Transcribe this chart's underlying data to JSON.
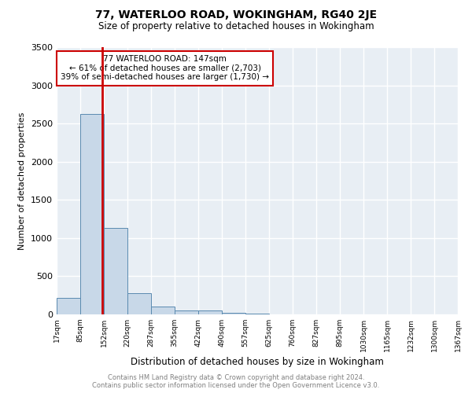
{
  "title": "77, WATERLOO ROAD, WOKINGHAM, RG40 2JE",
  "subtitle": "Size of property relative to detached houses in Wokingham",
  "xlabel": "Distribution of detached houses by size in Wokingham",
  "ylabel": "Number of detached properties",
  "bar_color": "#c8d8e8",
  "bar_edge_color": "#5a8ab0",
  "bar_heights": [
    220,
    2630,
    1130,
    280,
    100,
    55,
    50,
    20,
    10,
    5,
    5,
    3,
    2,
    2,
    2
  ],
  "x_tick_labels": [
    "17sqm",
    "85sqm",
    "152sqm",
    "220sqm",
    "287sqm",
    "355sqm",
    "422sqm",
    "490sqm",
    "557sqm",
    "625sqm",
    "760sqm",
    "827sqm",
    "895sqm",
    "1030sqm",
    "1165sqm",
    "1232sqm",
    "1300sqm",
    "1367sqm"
  ],
  "property_line_x": 147,
  "annotation_title": "77 WATERLOO ROAD: 147sqm",
  "annotation_line1": "← 61% of detached houses are smaller (2,703)",
  "annotation_line2": "39% of semi-detached houses are larger (1,730) →",
  "annotation_color": "#cc0000",
  "ylim": [
    0,
    3500
  ],
  "footer_line1": "Contains HM Land Registry data © Crown copyright and database right 2024.",
  "footer_line2": "Contains public sector information licensed under the Open Government Licence v3.0.",
  "background_color": "#e8eef4",
  "grid_color": "#ffffff"
}
